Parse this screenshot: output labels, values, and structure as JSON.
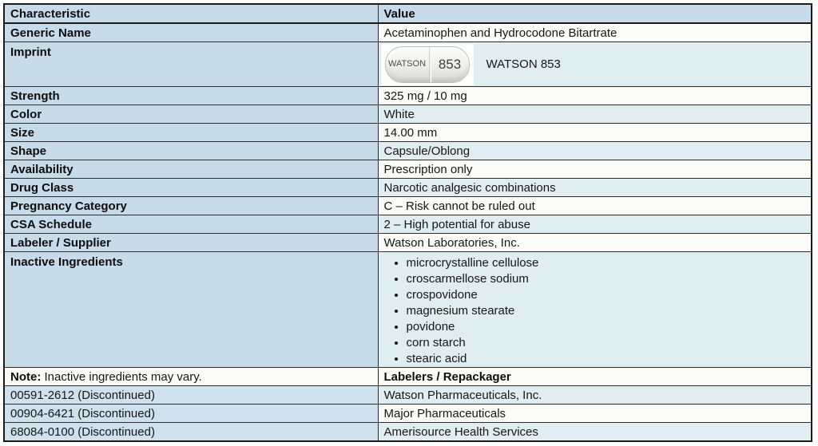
{
  "header": {
    "col1": "Characteristic",
    "col2": "Value"
  },
  "rows": {
    "generic_name": {
      "label": "Generic Name",
      "value": "Acetaminophen and Hydrocodone Bitartrate"
    },
    "imprint": {
      "label": "Imprint",
      "value": "WATSON 853",
      "pill_left": "WATSON",
      "pill_right": "853"
    },
    "strength": {
      "label": "Strength",
      "value": "325 mg / 10 mg"
    },
    "color": {
      "label": "Color",
      "value": "White"
    },
    "size": {
      "label": "Size",
      "value": "14.00 mm"
    },
    "shape": {
      "label": "Shape",
      "value": "Capsule/Oblong"
    },
    "availability": {
      "label": "Availability",
      "value": "Prescription only"
    },
    "drug_class": {
      "label": "Drug Class",
      "value": "Narcotic analgesic combinations"
    },
    "pregnancy_category": {
      "label": "Pregnancy Category",
      "value": "C – Risk cannot be ruled out"
    },
    "csa_schedule": {
      "label": "CSA Schedule",
      "value": "2 – High potential for abuse"
    },
    "labeler_supplier": {
      "label": "Labeler / Supplier",
      "value": "Watson Laboratories, Inc."
    },
    "inactive_ingredients": {
      "label": "Inactive Ingredients",
      "items": [
        "microcrystalline cellulose",
        "croscarmellose sodium",
        "crospovidone",
        "magnesium stearate",
        "povidone",
        "corn starch",
        "stearic acid"
      ]
    },
    "note": {
      "label_bold": "Note:",
      "label_text": " Inactive ingredients may vary.",
      "value": "Labelers / Repackager"
    },
    "labelers": [
      {
        "ndc": "00591-2612 (Discontinued)",
        "name": "Watson Pharmaceuticals, Inc."
      },
      {
        "ndc": "00904-6421 (Discontinued)",
        "name": "Major Pharmaceuticals"
      },
      {
        "ndc": "68084-0100 (Discontinued)",
        "name": "Amerisource Health Services"
      }
    ]
  },
  "colors": {
    "label_column_bg": "#c7dbe9",
    "value_row_light": "#fbfcf7",
    "value_row_blue": "#e0edf1",
    "border": "#2c2c2c",
    "text": "#161616"
  }
}
